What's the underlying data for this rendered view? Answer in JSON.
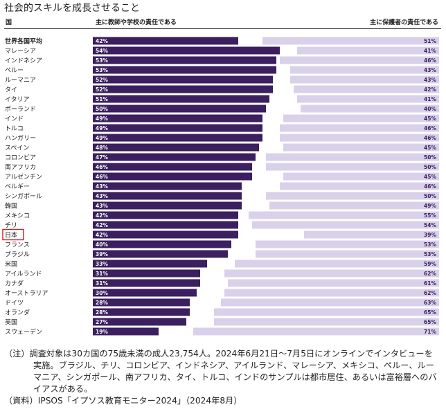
{
  "page": {
    "title": "社会的スキルを成長させること",
    "note": "（注）調査対象は30カ国の75歳未満の成人23,754人。2024年6月21日〜7月5日にオンラインでインタビューを実施。ブラジル、チリ、コロンビア、インドネシア、アイルランド、マレーシア、メキシコ、ペルー、ルーマニア、シンガポール、南アフリカ、タイ、トルコ、インドのサンプルは都市居住、あるいは富裕層へのバイアスがある。",
    "source": "（資料）IPSOS「イプソス教育モニター2024」（2024年8月）"
  },
  "chart_data": {
    "type": "bar",
    "orientation": "horizontal",
    "column_headers": {
      "country": "国",
      "teacher": "主に教師や学校の責任である",
      "parent": "主に保護者の責任である"
    },
    "categories": [
      "世界各国平均",
      "マレーシア",
      "インドネシア",
      "ペルー",
      "ルーマニア",
      "タイ",
      "イタリア",
      "ポーランド",
      "インド",
      "トルコ",
      "ハンガリー",
      "スペイン",
      "コロンビア",
      "南アフリカ",
      "アルゼンチン",
      "ベルギー",
      "シンガポール",
      "韓国",
      "メキシコ",
      "チリ",
      "日本",
      "フランス",
      "ブラジル",
      "米国",
      "アイルランド",
      "カナダ",
      "オーストラリア",
      "ドイツ",
      "オランダ",
      "英国",
      "スウェーデン"
    ],
    "series": [
      {
        "name": "主に教師や学校の責任である",
        "color": "#3b1f5e",
        "values": [
          42,
          54,
          53,
          53,
          52,
          52,
          51,
          50,
          49,
          49,
          49,
          48,
          47,
          46,
          46,
          43,
          43,
          43,
          42,
          42,
          42,
          40,
          39,
          33,
          31,
          31,
          30,
          28,
          28,
          27,
          19
        ]
      },
      {
        "name": "主に保護者の責任である",
        "color": "#d9d1ea",
        "values": [
          51,
          41,
          46,
          43,
          43,
          42,
          41,
          40,
          45,
          46,
          46,
          45,
          50,
          50,
          45,
          46,
          50,
          49,
          55,
          54,
          39,
          53,
          53,
          59,
          62,
          61,
          62,
          63,
          65,
          65,
          71
        ]
      }
    ],
    "xlim": [
      0,
      100
    ],
    "highlight": "日本",
    "highlight_color": "#e0141e",
    "bold_category": "世界各国平均"
  }
}
